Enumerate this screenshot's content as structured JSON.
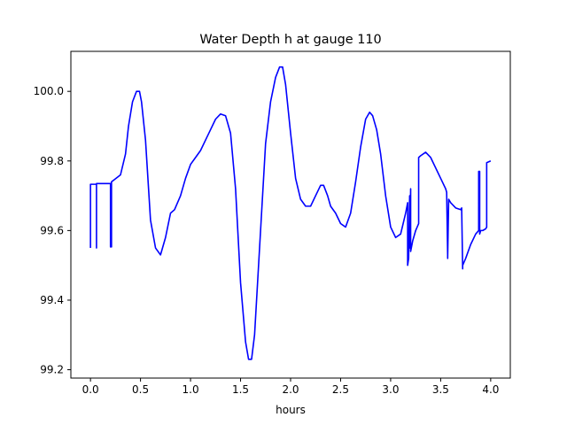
{
  "chart_data": {
    "type": "line",
    "title": "Water Depth h at gauge 110",
    "xlabel": "hours",
    "ylabel": "",
    "xlim": [
      -0.196,
      4.196
    ],
    "ylim": [
      99.176,
      100.115
    ],
    "xticks": [
      0.0,
      0.5,
      1.0,
      1.5,
      2.0,
      2.5,
      3.0,
      3.5,
      4.0
    ],
    "xtick_labels": [
      "0.0",
      "0.5",
      "1.0",
      "1.5",
      "2.0",
      "2.5",
      "3.0",
      "3.5",
      "4.0"
    ],
    "yticks": [
      99.2,
      99.4,
      99.6,
      99.8,
      100.0
    ],
    "ytick_labels": [
      "99.2",
      "99.4",
      "99.6",
      "99.8",
      "100.0"
    ],
    "grid": false,
    "legend": "none",
    "series": [
      {
        "color": "#0000ff",
        "x": [
          0.0,
          0.0,
          0.0,
          0.05,
          0.06,
          0.06,
          0.06,
          0.1,
          0.2,
          0.2,
          0.2,
          0.21,
          0.21,
          0.21,
          0.3,
          0.35,
          0.38,
          0.42,
          0.46,
          0.49,
          0.51,
          0.55,
          0.6,
          0.65,
          0.7,
          0.75,
          0.8,
          0.84,
          0.9,
          0.95,
          1.0,
          1.05,
          1.1,
          1.15,
          1.2,
          1.25,
          1.3,
          1.35,
          1.4,
          1.45,
          1.5,
          1.55,
          1.58,
          1.61,
          1.64,
          1.7,
          1.75,
          1.8,
          1.85,
          1.89,
          1.92,
          1.95,
          2.0,
          2.05,
          2.1,
          2.15,
          2.2,
          2.25,
          2.3,
          2.33,
          2.37,
          2.4,
          2.45,
          2.5,
          2.55,
          2.6,
          2.65,
          2.7,
          2.75,
          2.79,
          2.82,
          2.86,
          2.9,
          2.95,
          3.0,
          3.05,
          3.1,
          3.15,
          3.17,
          3.17,
          3.18,
          3.19,
          3.19,
          3.2,
          3.2,
          3.22,
          3.25,
          3.28,
          3.28,
          3.3,
          3.35,
          3.4,
          3.45,
          3.5,
          3.55,
          3.56,
          3.57,
          3.57,
          3.58,
          3.6,
          3.65,
          3.7,
          3.71,
          3.72,
          3.72,
          3.75,
          3.8,
          3.85,
          3.88,
          3.88,
          3.89,
          3.89,
          3.9,
          3.92,
          3.95,
          3.96,
          3.96,
          4.0
        ],
        "y": [
          99.55,
          99.733,
          99.733,
          99.733,
          99.733,
          99.55,
          99.735,
          99.735,
          99.735,
          99.553,
          99.735,
          99.736,
          99.553,
          99.74,
          99.76,
          99.82,
          99.9,
          99.97,
          100.0,
          100.0,
          99.97,
          99.86,
          99.63,
          99.55,
          99.53,
          99.58,
          99.65,
          99.66,
          99.7,
          99.75,
          99.79,
          99.81,
          99.83,
          99.86,
          99.89,
          99.92,
          99.935,
          99.93,
          99.88,
          99.72,
          99.45,
          99.28,
          99.23,
          99.23,
          99.3,
          99.6,
          99.85,
          99.97,
          100.04,
          100.07,
          100.07,
          100.02,
          99.88,
          99.75,
          99.69,
          99.67,
          99.67,
          99.7,
          99.73,
          99.73,
          99.7,
          99.67,
          99.65,
          99.62,
          99.61,
          99.65,
          99.74,
          99.84,
          99.92,
          99.94,
          99.93,
          99.89,
          99.82,
          99.7,
          99.61,
          99.58,
          99.59,
          99.65,
          99.68,
          99.5,
          99.52,
          99.7,
          99.55,
          99.72,
          99.54,
          99.57,
          99.6,
          99.62,
          99.81,
          99.815,
          99.825,
          99.81,
          99.78,
          99.75,
          99.72,
          99.71,
          99.53,
          99.52,
          99.69,
          99.68,
          99.665,
          99.66,
          99.665,
          99.49,
          99.5,
          99.52,
          99.56,
          99.59,
          99.6,
          99.77,
          99.77,
          99.59,
          99.6,
          99.6,
          99.605,
          99.61,
          99.795,
          99.8
        ]
      }
    ]
  }
}
